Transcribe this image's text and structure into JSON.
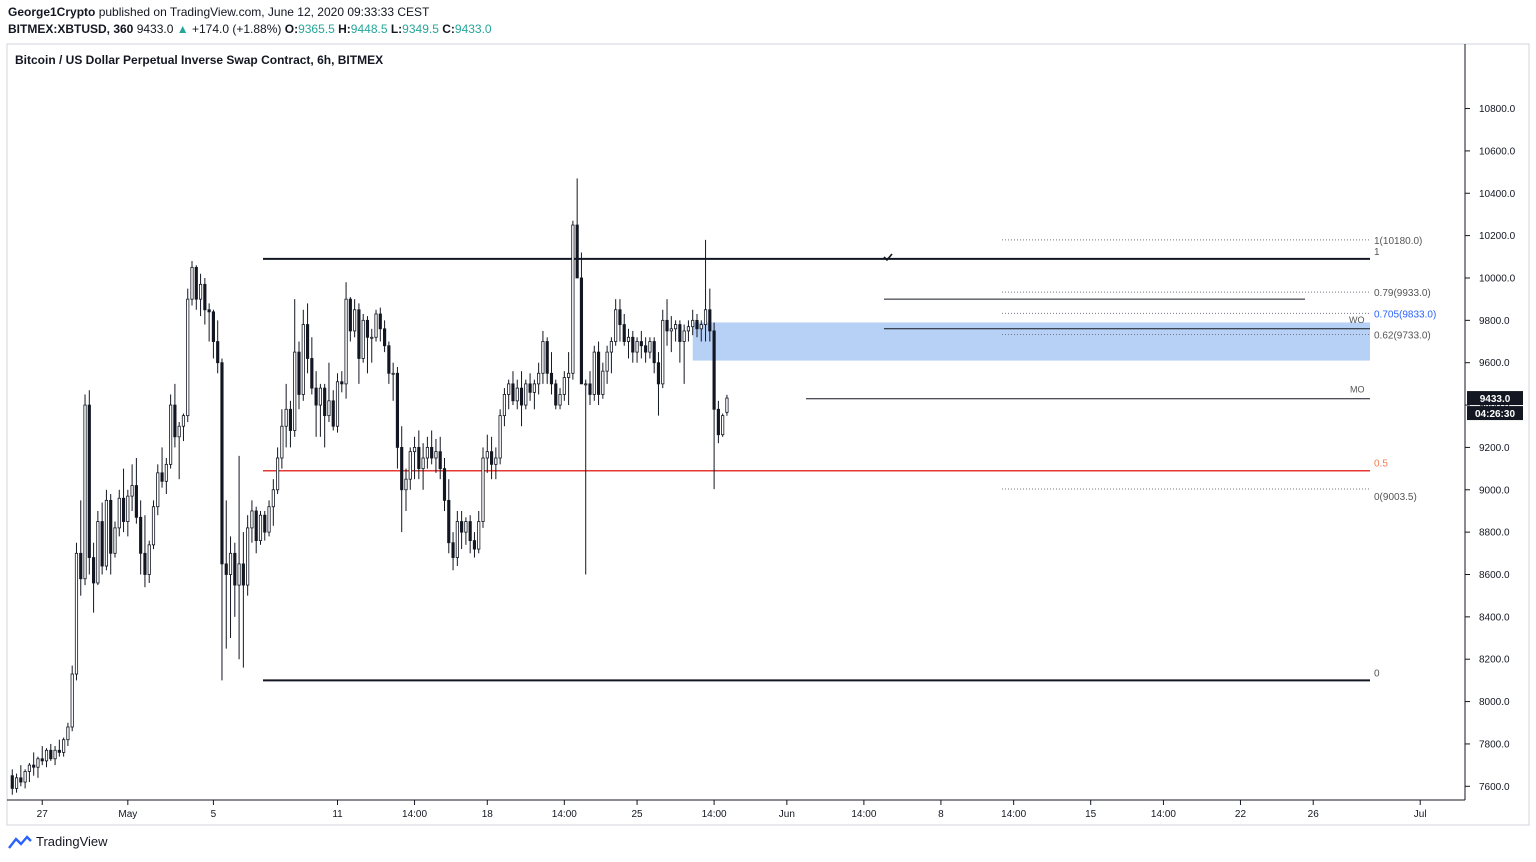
{
  "header": {
    "author": "George1Crypto",
    "published_text": "published on TradingView.com, June 12, 2020 09:33:33 CEST",
    "symbol": "BITMEX:XBTUSD, 360",
    "last": "9433.0",
    "change_arrow": "▲",
    "change": "+174.0 (+1.88%)",
    "o_label": "O:",
    "o_value": "9365.5",
    "h_label": "H:",
    "h_value": "9448.5",
    "l_label": "L:",
    "l_value": "9349.5",
    "c_label": "C:",
    "c_value": "9433.0"
  },
  "chart_data": {
    "type": "candlestick",
    "title": "Bitcoin / US Dollar Perpetual Inverse Swap Contract, 6h, BITMEX",
    "y_ticks": [
      "10800.0",
      "10600.0",
      "10400.0",
      "10200.0",
      "10000.0",
      "9800.0",
      "9600.0",
      "9400.0",
      "9200.0",
      "9000.0",
      "8800.0",
      "8600.0",
      "8400.0",
      "8200.0",
      "8000.0",
      "7800.0",
      "7600.0"
    ],
    "y_tick_values": [
      10800,
      10600,
      10400,
      10200,
      10000,
      9800,
      9600,
      9400,
      9200,
      9000,
      8800,
      8600,
      8400,
      8200,
      8000,
      7800,
      7600
    ],
    "ylim": [
      7540,
      11100
    ],
    "x_ticks": [
      "27",
      "May",
      "5",
      "11",
      "14:00",
      "18",
      "14:00",
      "25",
      "14:00",
      "Jun",
      "14:00",
      "8",
      "14:00",
      "15",
      "14:00",
      "22",
      "26",
      "Jul"
    ],
    "x_tick_bars": [
      8,
      28,
      48,
      77,
      95,
      112,
      130,
      147,
      165,
      182,
      200,
      218,
      235,
      253,
      270,
      288,
      305,
      330
    ],
    "xlim_bars": [
      0,
      340
    ],
    "price_label": "9433.0",
    "countdown_label": "04:26:30",
    "bars": [
      [
        7650,
        7680,
        7560,
        7590
      ],
      [
        7590,
        7660,
        7570,
        7640
      ],
      [
        7640,
        7700,
        7600,
        7620
      ],
      [
        7620,
        7680,
        7590,
        7670
      ],
      [
        7670,
        7710,
        7620,
        7700
      ],
      [
        7700,
        7760,
        7650,
        7690
      ],
      [
        7690,
        7740,
        7640,
        7730
      ],
      [
        7730,
        7790,
        7700,
        7720
      ],
      [
        7720,
        7780,
        7690,
        7770
      ],
      [
        7770,
        7800,
        7720,
        7730
      ],
      [
        7730,
        7790,
        7700,
        7770
      ],
      [
        7770,
        7820,
        7740,
        7760
      ],
      [
        7760,
        7830,
        7740,
        7820
      ],
      [
        7820,
        7900,
        7790,
        7880
      ],
      [
        7880,
        8170,
        7860,
        8130
      ],
      [
        8130,
        8750,
        8100,
        8700
      ],
      [
        8700,
        8950,
        8500,
        8580
      ],
      [
        8580,
        9450,
        8550,
        9400
      ],
      [
        9400,
        9470,
        8600,
        8680
      ],
      [
        8680,
        8750,
        8420,
        8560
      ],
      [
        8560,
        8900,
        8550,
        8850
      ],
      [
        8850,
        8940,
        8600,
        8640
      ],
      [
        8640,
        9000,
        8620,
        8950
      ],
      [
        8950,
        8980,
        8600,
        8700
      ],
      [
        8700,
        8850,
        8680,
        8820
      ],
      [
        8820,
        9000,
        8780,
        8960
      ],
      [
        8960,
        9100,
        8800,
        8850
      ],
      [
        8850,
        9000,
        8780,
        8970
      ],
      [
        8970,
        9120,
        8900,
        9020
      ],
      [
        9020,
        9150,
        8840,
        8870
      ],
      [
        8870,
        8950,
        8600,
        8700
      ],
      [
        8700,
        8880,
        8540,
        8600
      ],
      [
        8600,
        8760,
        8560,
        8740
      ],
      [
        8740,
        8950,
        8720,
        8920
      ],
      [
        8920,
        9120,
        8880,
        9080
      ],
      [
        9080,
        9200,
        9010,
        9040
      ],
      [
        9040,
        9150,
        8980,
        9120
      ],
      [
        9120,
        9450,
        9100,
        9400
      ],
      [
        9400,
        9500,
        9200,
        9250
      ],
      [
        9250,
        9320,
        9050,
        9300
      ],
      [
        9300,
        9360,
        9230,
        9350
      ],
      [
        9350,
        9950,
        9320,
        9900
      ],
      [
        9900,
        10080,
        9870,
        10050
      ],
      [
        10050,
        10060,
        9850,
        9900
      ],
      [
        9900,
        10020,
        9820,
        9970
      ],
      [
        9970,
        10000,
        9780,
        9850
      ],
      [
        9850,
        9880,
        9700,
        9840
      ],
      [
        9840,
        9850,
        9620,
        9700
      ],
      [
        9700,
        9800,
        9550,
        9600
      ],
      [
        9600,
        9620,
        8100,
        8650
      ],
      [
        8650,
        8950,
        8250,
        8600
      ],
      [
        8600,
        8780,
        8300,
        8700
      ],
      [
        8700,
        8750,
        8400,
        8550
      ],
      [
        8550,
        9160,
        8200,
        8650
      ],
      [
        8650,
        8800,
        8160,
        8550
      ],
      [
        8550,
        8880,
        8500,
        8820
      ],
      [
        8820,
        8950,
        8750,
        8900
      ],
      [
        8900,
        8920,
        8700,
        8760
      ],
      [
        8760,
        8900,
        8740,
        8880
      ],
      [
        8880,
        8900,
        8760,
        8800
      ],
      [
        8800,
        8950,
        8780,
        8920
      ],
      [
        8920,
        9050,
        8830,
        9000
      ],
      [
        9000,
        9200,
        8980,
        9150
      ],
      [
        9150,
        9380,
        9100,
        9300
      ],
      [
        9300,
        9500,
        9200,
        9380
      ],
      [
        9380,
        9420,
        9200,
        9280
      ],
      [
        9280,
        9900,
        9250,
        9650
      ],
      [
        9650,
        9700,
        9380,
        9450
      ],
      [
        9450,
        9850,
        9420,
        9780
      ],
      [
        9780,
        9880,
        9550,
        9620
      ],
      [
        9620,
        9720,
        9450,
        9480
      ],
      [
        9480,
        9560,
        9250,
        9400
      ],
      [
        9400,
        9500,
        9250,
        9480
      ],
      [
        9480,
        9500,
        9200,
        9350
      ],
      [
        9350,
        9600,
        9320,
        9420
      ],
      [
        9420,
        9470,
        9280,
        9300
      ],
      [
        9300,
        9550,
        9270,
        9510
      ],
      [
        9510,
        9560,
        9460,
        9500
      ],
      [
        9500,
        9980,
        9430,
        9900
      ],
      [
        9900,
        9910,
        9700,
        9750
      ],
      [
        9750,
        9900,
        9720,
        9850
      ],
      [
        9850,
        9880,
        9500,
        9620
      ],
      [
        9620,
        9830,
        9600,
        9800
      ],
      [
        9800,
        9820,
        9550,
        9720
      ],
      [
        9720,
        9760,
        9600,
        9720
      ],
      [
        9720,
        9850,
        9700,
        9830
      ],
      [
        9830,
        9860,
        9700,
        9760
      ],
      [
        9760,
        9800,
        9650,
        9680
      ],
      [
        9680,
        9700,
        9500,
        9550
      ],
      [
        9550,
        9600,
        9420,
        9550
      ],
      [
        9550,
        9580,
        9100,
        9200
      ],
      [
        9200,
        9300,
        8800,
        9000
      ],
      [
        9000,
        9100,
        8900,
        9050
      ],
      [
        9050,
        9200,
        9000,
        9180
      ],
      [
        9180,
        9250,
        9050,
        9200
      ],
      [
        9200,
        9280,
        9050,
        9100
      ],
      [
        9100,
        9220,
        9000,
        9150
      ],
      [
        9150,
        9250,
        9100,
        9200
      ],
      [
        9200,
        9280,
        9120,
        9150
      ],
      [
        9150,
        9240,
        9080,
        9180
      ],
      [
        9180,
        9250,
        9050,
        9100
      ],
      [
        9100,
        9150,
        8900,
        8950
      ],
      [
        8950,
        9050,
        8700,
        8750
      ],
      [
        8750,
        8800,
        8620,
        8680
      ],
      [
        8680,
        8900,
        8640,
        8850
      ],
      [
        8850,
        8900,
        8720,
        8800
      ],
      [
        8800,
        8870,
        8740,
        8850
      ],
      [
        8850,
        8880,
        8700,
        8760
      ],
      [
        8760,
        8800,
        8680,
        8720
      ],
      [
        8720,
        8900,
        8700,
        8850
      ],
      [
        8850,
        9200,
        8820,
        9150
      ],
      [
        9150,
        9260,
        9080,
        9180
      ],
      [
        9180,
        9250,
        9050,
        9120
      ],
      [
        9120,
        9200,
        9050,
        9150
      ],
      [
        9150,
        9380,
        9120,
        9350
      ],
      [
        9350,
        9480,
        9300,
        9450
      ],
      [
        9450,
        9520,
        9380,
        9500
      ],
      [
        9500,
        9560,
        9400,
        9420
      ],
      [
        9420,
        9520,
        9380,
        9480
      ],
      [
        9480,
        9560,
        9300,
        9400
      ],
      [
        9400,
        9520,
        9380,
        9500
      ],
      [
        9500,
        9550,
        9420,
        9460
      ],
      [
        9460,
        9520,
        9380,
        9500
      ],
      [
        9500,
        9600,
        9450,
        9550
      ],
      [
        9550,
        9750,
        9500,
        9700
      ],
      [
        9700,
        9720,
        9500,
        9550
      ],
      [
        9550,
        9650,
        9450,
        9500
      ],
      [
        9500,
        9520,
        9380,
        9400
      ],
      [
        9400,
        9480,
        9380,
        9450
      ],
      [
        9450,
        9560,
        9420,
        9530
      ],
      [
        9530,
        9650,
        9400,
        9550
      ],
      [
        9550,
        10270,
        9520,
        10250
      ],
      [
        10250,
        10470,
        10080,
        10000
      ],
      [
        10000,
        10120,
        9500,
        9500
      ],
      [
        9500,
        9520,
        8600,
        9500
      ],
      [
        9500,
        9560,
        9400,
        9450
      ],
      [
        9450,
        9680,
        9420,
        9650
      ],
      [
        9650,
        9700,
        9400,
        9450
      ],
      [
        9450,
        9600,
        9430,
        9560
      ],
      [
        9560,
        9680,
        9500,
        9650
      ],
      [
        9650,
        9720,
        9550,
        9700
      ],
      [
        9700,
        9900,
        9680,
        9850
      ],
      [
        9850,
        9900,
        9700,
        9780
      ],
      [
        9780,
        9830,
        9680,
        9700
      ],
      [
        9700,
        9760,
        9620,
        9720
      ],
      [
        9720,
        9750,
        9600,
        9650
      ],
      [
        9650,
        9720,
        9600,
        9700
      ],
      [
        9700,
        9750,
        9620,
        9680
      ],
      [
        9680,
        9720,
        9600,
        9650
      ],
      [
        9650,
        9720,
        9620,
        9700
      ],
      [
        9700,
        9720,
        9550,
        9600
      ],
      [
        9600,
        9650,
        9350,
        9500
      ],
      [
        9500,
        9850,
        9480,
        9800
      ],
      [
        9800,
        9900,
        9680,
        9750
      ],
      [
        9750,
        9820,
        9650,
        9760
      ],
      [
        9760,
        9800,
        9700,
        9780
      ],
      [
        9780,
        9800,
        9600,
        9700
      ],
      [
        9700,
        9780,
        9500,
        9750
      ],
      [
        9750,
        9800,
        9700,
        9770
      ],
      [
        9770,
        9850,
        9730,
        9800
      ],
      [
        9800,
        9830,
        9720,
        9760
      ],
      [
        9760,
        9800,
        9700,
        9780
      ],
      [
        9780,
        10180,
        9700,
        9850
      ],
      [
        9850,
        9950,
        9700,
        9750
      ],
      [
        9750,
        9790,
        9003,
        9380
      ],
      [
        9380,
        9420,
        9220,
        9260
      ],
      [
        9260,
        9360,
        9250,
        9350
      ],
      [
        9365.5,
        9448.5,
        9349.5,
        9433
      ]
    ],
    "levels": {
      "range_high": 10090,
      "range_low": 8100,
      "mid_red": 9090,
      "fib_1": 10180,
      "fib_079": 9933,
      "fib_0705": 9833,
      "fib_062": 9733,
      "fib_05": 9090,
      "fib_0": 9003.5,
      "mo_line": 9430,
      "wo_line": 9760,
      "top_box_line": 9900,
      "zone_top": 9790,
      "zone_bottom": 9610
    },
    "level_labels": {
      "range_high": "1",
      "range_low": "0",
      "fib_1": "1(10180.0)",
      "fib_079": "0.79(9933.0)",
      "fib_0705": "0.705(9833.0)",
      "fib_062": "0.62(9733.0)",
      "fib_05": "0.5",
      "fib_0": "0(9003.5)",
      "mo": "MO",
      "wo": "WO"
    },
    "colors": {
      "up": "#ffffff",
      "down": "#131722",
      "wick": "#131722",
      "red_line": "#e53935",
      "fib_05": "#f57c50",
      "fib_0705": "#2962ff",
      "zone": "#9ec1f2",
      "price_bg": "#131722"
    }
  },
  "footer": {
    "brand": "TradingView"
  }
}
